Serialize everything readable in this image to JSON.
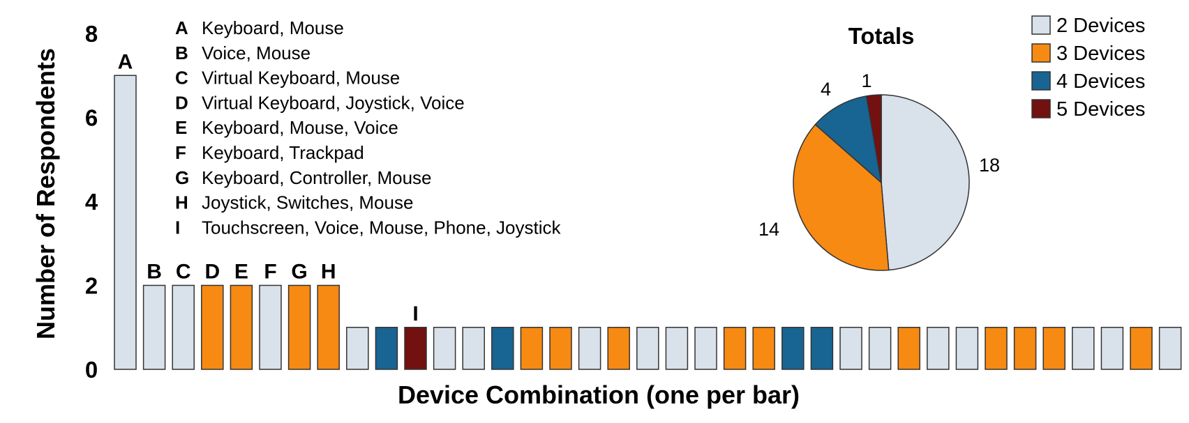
{
  "chart_data": [
    {
      "type": "bar",
      "xlabel": "Device Combination (one per bar)",
      "ylabel": "Number of Respondents",
      "ylim": [
        0,
        8
      ],
      "yticks": [
        "0",
        "2",
        "4",
        "6",
        "8"
      ],
      "grid": false,
      "values": [
        7,
        2,
        2,
        2,
        2,
        2,
        2,
        2,
        1,
        1,
        1,
        1,
        1,
        1,
        1,
        1,
        1,
        1,
        1,
        1,
        1,
        1,
        1,
        1,
        1,
        1,
        1,
        1,
        1,
        1,
        1,
        1,
        1,
        1,
        1,
        1,
        1
      ],
      "device_counts": [
        2,
        2,
        2,
        3,
        3,
        2,
        3,
        3,
        2,
        4,
        5,
        2,
        2,
        4,
        3,
        3,
        2,
        3,
        2,
        2,
        2,
        3,
        3,
        4,
        4,
        2,
        2,
        3,
        2,
        2,
        3,
        3,
        3,
        2,
        2,
        3,
        2
      ],
      "bar_labels": [
        "A",
        "B",
        "C",
        "D",
        "E",
        "F",
        "G",
        "H",
        "",
        "",
        "I",
        "",
        "",
        "",
        "",
        "",
        "",
        "",
        "",
        "",
        "",
        "",
        "",
        "",
        "",
        "",
        "",
        "",
        "",
        "",
        "",
        "",
        "",
        "",
        "",
        "",
        ""
      ],
      "key": [
        {
          "letter": "A",
          "text": "Keyboard, Mouse"
        },
        {
          "letter": "B",
          "text": "Voice, Mouse"
        },
        {
          "letter": "C",
          "text": "Virtual Keyboard, Mouse"
        },
        {
          "letter": "D",
          "text": "Virtual Keyboard, Joystick, Voice"
        },
        {
          "letter": "E",
          "text": "Keyboard, Mouse, Voice"
        },
        {
          "letter": "F",
          "text": "Keyboard, Trackpad"
        },
        {
          "letter": "G",
          "text": "Keyboard, Controller, Mouse"
        },
        {
          "letter": "H",
          "text": "Joystick, Switches, Mouse"
        },
        {
          "letter": "I",
          "text": "Touchscreen, Voice, Mouse, Phone, Joystick"
        }
      ]
    },
    {
      "type": "pie",
      "title": "Totals",
      "slices": [
        {
          "label": "2 Devices",
          "value": 18,
          "value_label": "18"
        },
        {
          "label": "3 Devices",
          "value": 14,
          "value_label": "14"
        },
        {
          "label": "4 Devices",
          "value": 4,
          "value_label": "4"
        },
        {
          "label": "5 Devices",
          "value": 1,
          "value_label": "1"
        }
      ]
    }
  ],
  "legend": {
    "placement": "top-right",
    "entries": [
      {
        "label": "2 Devices",
        "devices": 2
      },
      {
        "label": "3 Devices",
        "devices": 3
      },
      {
        "label": "4 Devices",
        "devices": 4
      },
      {
        "label": "5 Devices",
        "devices": 5
      }
    ]
  },
  "colors": {
    "2": "#d9e1ea",
    "3": "#f78a12",
    "4": "#186493",
    "5": "#731010",
    "outline": "#333333"
  }
}
